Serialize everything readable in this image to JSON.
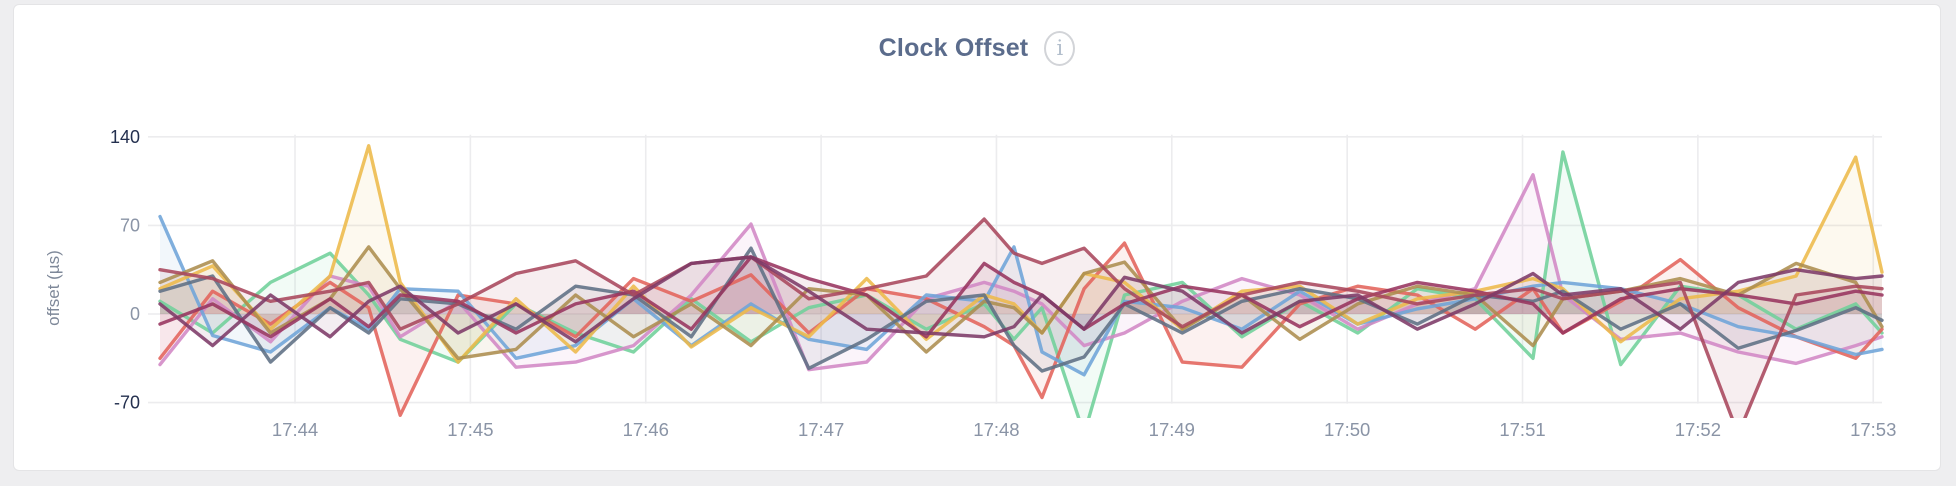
{
  "header": {
    "title": "Clock Offset",
    "info_icon_glyph": "i"
  },
  "colors": {
    "page_background": "#eeeef0",
    "card_background": "#ffffff",
    "card_border": "#e4e4e6",
    "title_color": "#5b6c8c",
    "gridline_color": "#ececee",
    "tick_label_color": "#8a94a6",
    "tick_label_emphasis_color": "#24304f",
    "axis_title_color": "#7e8899"
  },
  "chart_data": {
    "type": "line",
    "title": "Clock Offset",
    "xlabel": "",
    "ylabel": "offset (µs)",
    "ylim": [
      -70,
      140
    ],
    "yticks": [
      140,
      70,
      0,
      -70
    ],
    "yticks_emphasized": [
      140,
      -70
    ],
    "xticks": [
      "17:44",
      "17:45",
      "17:46",
      "17:47",
      "17:48",
      "17:49",
      "17:50",
      "17:51",
      "17:52",
      "17:53"
    ],
    "xtick_minutes": [
      44,
      45,
      46,
      47,
      48,
      49,
      50,
      51,
      52,
      53
    ],
    "x_domain_minutes": [
      43.23,
      53.05
    ],
    "grid": true,
    "legend_position": "none",
    "area_fill": true,
    "x_minutes": [
      43.23,
      43.53,
      43.86,
      44.2,
      44.42,
      44.6,
      44.93,
      45.26,
      45.6,
      45.93,
      46.26,
      46.6,
      46.93,
      47.26,
      47.6,
      47.93,
      48.1,
      48.26,
      48.5,
      48.73,
      49.06,
      49.4,
      49.73,
      50.06,
      50.4,
      50.73,
      51.06,
      51.23,
      51.56,
      51.9,
      52.23,
      52.56,
      52.9,
      53.05
    ],
    "series": [
      {
        "name": "series-mint",
        "color": "#6fd09a",
        "values": [
          10,
          -15,
          25,
          48,
          15,
          -20,
          -38,
          8,
          -15,
          -30,
          12,
          -22,
          5,
          15,
          -12,
          8,
          -20,
          5,
          -95,
          15,
          25,
          -18,
          10,
          -15,
          20,
          12,
          -35,
          128,
          -40,
          22,
          15,
          -12,
          8,
          -15
        ]
      },
      {
        "name": "series-orchid",
        "color": "#d287c5",
        "values": [
          -40,
          12,
          -22,
          30,
          22,
          -18,
          10,
          -42,
          -38,
          -25,
          15,
          71,
          -44,
          -38,
          12,
          25,
          18,
          8,
          -25,
          -15,
          10,
          28,
          15,
          -12,
          8,
          20,
          110,
          15,
          -20,
          -15,
          -30,
          -39,
          -25,
          -18
        ]
      },
      {
        "name": "series-salmon",
        "color": "#e2635b",
        "values": [
          -35,
          18,
          -8,
          25,
          5,
          -80,
          15,
          8,
          -18,
          28,
          10,
          31,
          -15,
          20,
          12,
          -10,
          -25,
          -66,
          20,
          56,
          -38,
          -42,
          8,
          22,
          15,
          -12,
          20,
          -15,
          10,
          43,
          5,
          -18,
          -35,
          -12
        ]
      },
      {
        "name": "series-blue",
        "color": "#6ea4d8",
        "values": [
          77,
          -17,
          -30,
          5,
          -12,
          20,
          18,
          -35,
          -25,
          12,
          -25,
          8,
          -20,
          -28,
          15,
          10,
          53,
          -30,
          -48,
          10,
          5,
          -12,
          18,
          -8,
          4,
          12,
          22,
          25,
          20,
          8,
          -10,
          -18,
          -32,
          -28
        ]
      },
      {
        "name": "series-gold",
        "color": "#edba4a",
        "values": [
          20,
          38,
          -12,
          30,
          133,
          25,
          -38,
          12,
          -30,
          22,
          -26,
          5,
          -18,
          28,
          -20,
          15,
          8,
          -15,
          32,
          25,
          -12,
          18,
          22,
          -8,
          12,
          18,
          28,
          20,
          -22,
          12,
          18,
          30,
          124,
          33
        ]
      },
      {
        "name": "series-tan",
        "color": "#ac8d4f",
        "values": [
          25,
          42,
          -15,
          12,
          53,
          20,
          -35,
          -28,
          15,
          -18,
          8,
          -25,
          20,
          15,
          -30,
          10,
          5,
          -15,
          32,
          41,
          -12,
          15,
          -20,
          8,
          22,
          15,
          -25,
          12,
          18,
          28,
          15,
          40,
          25,
          -10
        ]
      },
      {
        "name": "series-slate",
        "color": "#5f7084",
        "values": [
          18,
          30,
          -38,
          5,
          -15,
          12,
          8,
          -12,
          22,
          15,
          -18,
          52,
          -43,
          -20,
          10,
          15,
          -25,
          -45,
          -34,
          8,
          -15,
          10,
          20,
          12,
          -8,
          15,
          10,
          18,
          -12,
          8,
          -27,
          -13,
          5,
          -5
        ]
      },
      {
        "name": "series-wine",
        "color": "#97345e",
        "values": [
          -8,
          8,
          -18,
          12,
          -10,
          15,
          10,
          -15,
          8,
          18,
          -12,
          45,
          28,
          15,
          -18,
          40,
          25,
          15,
          -12,
          8,
          22,
          15,
          -10,
          12,
          25,
          18,
          8,
          -15,
          12,
          20,
          15,
          8,
          18,
          15
        ]
      },
      {
        "name": "series-maroon",
        "color": "#a8475c",
        "values": [
          35,
          28,
          10,
          18,
          25,
          -12,
          8,
          32,
          42,
          15,
          40,
          45,
          12,
          20,
          30,
          75,
          48,
          40,
          52,
          20,
          -10,
          15,
          25,
          18,
          8,
          15,
          20,
          12,
          18,
          25,
          -95,
          15,
          22,
          20
        ]
      },
      {
        "name": "series-plum",
        "color": "#7d3a68",
        "values": [
          8,
          -25,
          15,
          -18,
          10,
          22,
          -15,
          8,
          -22,
          12,
          40,
          45,
          18,
          -12,
          -15,
          -18,
          -10,
          15,
          -12,
          29,
          18,
          -15,
          10,
          15,
          -12,
          8,
          32,
          15,
          20,
          -12,
          25,
          35,
          28,
          30
        ]
      }
    ]
  }
}
